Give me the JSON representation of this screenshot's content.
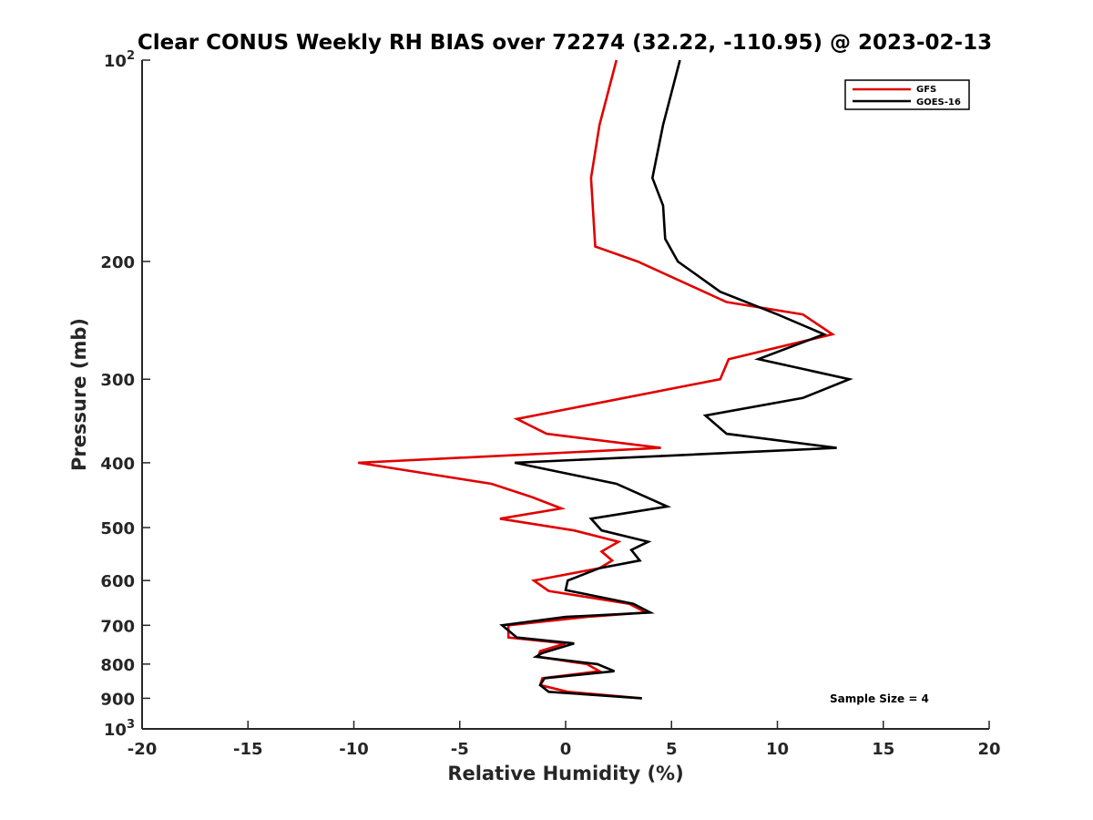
{
  "chart_data": {
    "type": "line",
    "title": "Clear CONUS Weekly RH BIAS over 72274 (32.22, -110.95) @ 2023-02-13",
    "xlabel": "Relative Humidity (%)",
    "ylabel": "Pressure (mb)",
    "xlim": [
      -20,
      20
    ],
    "ylim": [
      100,
      1000
    ],
    "y_scale": "log",
    "y_reversed": true,
    "x_ticks": [
      "-20",
      "-15",
      "-10",
      "-5",
      "0",
      "5",
      "10",
      "15",
      "20"
    ],
    "y_ticks": [
      {
        "value": 100,
        "label": "10",
        "sup": "2"
      },
      {
        "value": 200,
        "label": "200",
        "sup": ""
      },
      {
        "value": 300,
        "label": "300",
        "sup": ""
      },
      {
        "value": 400,
        "label": "400",
        "sup": ""
      },
      {
        "value": 500,
        "label": "500",
        "sup": ""
      },
      {
        "value": 600,
        "label": "600",
        "sup": ""
      },
      {
        "value": 700,
        "label": "700",
        "sup": ""
      },
      {
        "value": 800,
        "label": "800",
        "sup": ""
      },
      {
        "value": 900,
        "label": "900",
        "sup": ""
      },
      {
        "value": 1000,
        "label": "10",
        "sup": "3"
      }
    ],
    "grid": false,
    "legend_position": "top-right",
    "series": [
      {
        "name": "GFS",
        "color": "#e00000",
        "points": [
          [
            2.4,
            100
          ],
          [
            1.6,
            125
          ],
          [
            1.2,
            150
          ],
          [
            1.4,
            190
          ],
          [
            3.4,
            200
          ],
          [
            7.6,
            230
          ],
          [
            11.2,
            240
          ],
          [
            12.6,
            257
          ],
          [
            7.7,
            280
          ],
          [
            7.3,
            300
          ],
          [
            -2.3,
            344
          ],
          [
            -0.9,
            362
          ],
          [
            4.5,
            380
          ],
          [
            -9.8,
            400
          ],
          [
            -3.5,
            430
          ],
          [
            -1.6,
            450
          ],
          [
            -0.2,
            468
          ],
          [
            -3.1,
            485
          ],
          [
            0.4,
            505
          ],
          [
            2.5,
            525
          ],
          [
            1.7,
            543
          ],
          [
            2.2,
            560
          ],
          [
            1.6,
            575
          ],
          [
            -1.5,
            600
          ],
          [
            -0.8,
            622
          ],
          [
            3.0,
            650
          ],
          [
            3.8,
            670
          ],
          [
            1.0,
            680
          ],
          [
            -2.7,
            700
          ],
          [
            -2.7,
            730
          ],
          [
            0.0,
            745
          ],
          [
            -1.2,
            765
          ],
          [
            -1.3,
            780
          ],
          [
            1.0,
            800
          ],
          [
            1.6,
            820
          ],
          [
            -1.1,
            840
          ],
          [
            -1.2,
            860
          ],
          [
            0.1,
            880
          ],
          [
            3.6,
            900
          ]
        ]
      },
      {
        "name": "GOES-16",
        "color": "#000000",
        "points": [
          [
            5.4,
            100
          ],
          [
            4.6,
            125
          ],
          [
            4.1,
            150
          ],
          [
            4.6,
            165
          ],
          [
            4.7,
            185
          ],
          [
            5.3,
            200
          ],
          [
            7.3,
            222
          ],
          [
            10.0,
            240
          ],
          [
            12.2,
            257
          ],
          [
            9.1,
            280
          ],
          [
            13.4,
            300
          ],
          [
            11.2,
            320
          ],
          [
            6.6,
            340
          ],
          [
            7.6,
            362
          ],
          [
            12.8,
            380
          ],
          [
            -2.4,
            400
          ],
          [
            2.4,
            430
          ],
          [
            4.8,
            465
          ],
          [
            1.2,
            485
          ],
          [
            1.7,
            505
          ],
          [
            3.9,
            525
          ],
          [
            3.1,
            540
          ],
          [
            3.5,
            560
          ],
          [
            1.6,
            575
          ],
          [
            0.1,
            600
          ],
          [
            0.0,
            620
          ],
          [
            3.2,
            650
          ],
          [
            4.0,
            670
          ],
          [
            0.0,
            680
          ],
          [
            -3.0,
            700
          ],
          [
            -2.3,
            730
          ],
          [
            0.4,
            745
          ],
          [
            -1.1,
            770
          ],
          [
            -1.4,
            780
          ],
          [
            1.5,
            800
          ],
          [
            2.3,
            820
          ],
          [
            -1.0,
            840
          ],
          [
            -1.2,
            860
          ],
          [
            -0.8,
            880
          ],
          [
            3.6,
            900
          ]
        ]
      }
    ],
    "annotation": "Sample Size = 4"
  }
}
